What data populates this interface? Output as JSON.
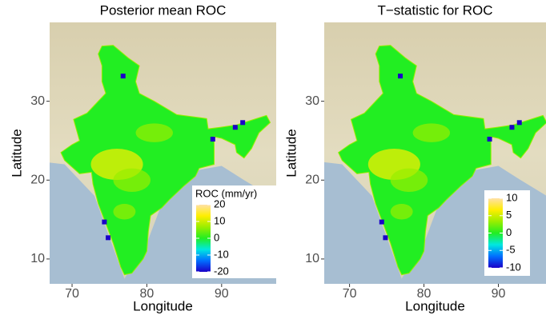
{
  "chart_data": [
    {
      "type": "raster",
      "title": "Posterior mean ROC",
      "xlabel": "Longitude",
      "ylabel": "Latitude",
      "xlim": [
        67.0,
        97.3
      ],
      "ylim": [
        6.85,
        40.0
      ],
      "xticks": [
        70,
        80,
        90
      ],
      "yticks": [
        10,
        20,
        30
      ],
      "legend_title": "ROC (mm/yr)",
      "clim": [
        -20,
        20
      ],
      "cticks": [
        20,
        10,
        0,
        -10,
        -20
      ],
      "colors": [
        "#1a00c8",
        "#0070ff",
        "#00e8e0",
        "#22ee22",
        "#99ee00",
        "#ffee00",
        "#ffe0a8"
      ]
    },
    {
      "type": "raster",
      "title": "T−statistic for ROC",
      "xlabel": "Longitude",
      "ylabel": "Latitude",
      "xlim": [
        66.6,
        96.4
      ],
      "ylim": [
        6.85,
        40.0
      ],
      "xticks": [
        70,
        80,
        90
      ],
      "yticks": [
        10,
        20,
        30
      ],
      "clim": [
        -10,
        10
      ],
      "cticks": [
        10,
        5,
        0,
        -5,
        -10
      ],
      "colors": [
        "#1a00c8",
        "#0070ff",
        "#00e8e0",
        "#22ee22",
        "#99ee00",
        "#ffee00",
        "#ffe0a8"
      ]
    }
  ]
}
